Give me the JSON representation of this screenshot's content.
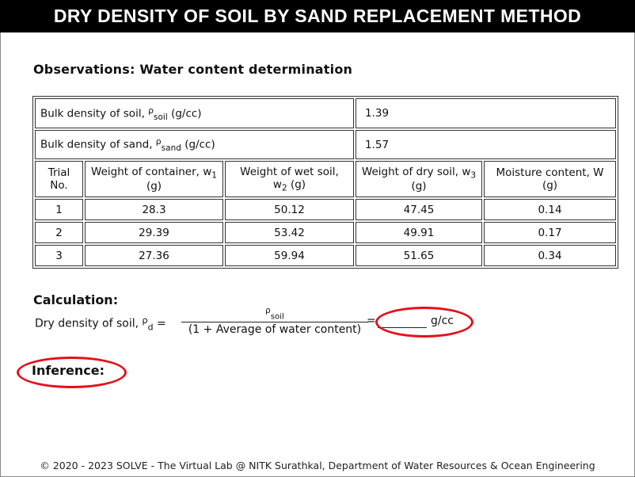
{
  "header": {
    "title": "DRY DENSITY OF SOIL BY SAND REPLACEMENT METHOD"
  },
  "observations": {
    "heading": "Observations: Water content determination",
    "bulk_soil": {
      "label": "Bulk density of soil, ",
      "symbol": "ρ",
      "subscript": "soil",
      "unit": " (g/cc)",
      "value": "1.39"
    },
    "bulk_sand": {
      "label": "Bulk density of sand, ",
      "symbol": "ρ",
      "subscript": "sand",
      "unit": " (g/cc)",
      "value": "1.57"
    },
    "columns": {
      "trial": {
        "line1": "Trial",
        "line2": "No."
      },
      "container": {
        "text": "Weight of container, w",
        "sub": "1",
        "unit": "(g)"
      },
      "wet": {
        "text": "Weight of wet soil,",
        "symbol": "w",
        "sub": "2",
        "unit": " (g)"
      },
      "dry": {
        "text": "Weight of dry soil, w",
        "sub": "3",
        "unit": "(g)"
      },
      "moisture": {
        "text": "Moisture content, W",
        "unit": "(g)"
      }
    },
    "rows": [
      {
        "trial": "1",
        "container": "28.3",
        "wet": "50.12",
        "dry": "47.45",
        "moisture": "0.14"
      },
      {
        "trial": "2",
        "container": "29.39",
        "wet": "53.42",
        "dry": "49.91",
        "moisture": "0.17"
      },
      {
        "trial": "3",
        "container": "27.36",
        "wet": "59.94",
        "dry": "51.65",
        "moisture": "0.34"
      }
    ]
  },
  "calculation": {
    "heading": "Calculation:",
    "label": "Dry density of soil, ",
    "symbol": "ρ",
    "subscript": "d",
    "equals": " =",
    "numerator_symbol": "ρ",
    "numerator_sub": "soil",
    "denominator": "(1 + Average of water content)",
    "result_equals": "=",
    "unit": "g/cc"
  },
  "inference": {
    "label": "Inference:"
  },
  "highlight_color": "#e4101b",
  "footer": {
    "text": "© 2020 - 2023 SOLVE - The Virtual Lab @ NITK Surathkal, Department of Water Resources & Ocean Engineering"
  }
}
